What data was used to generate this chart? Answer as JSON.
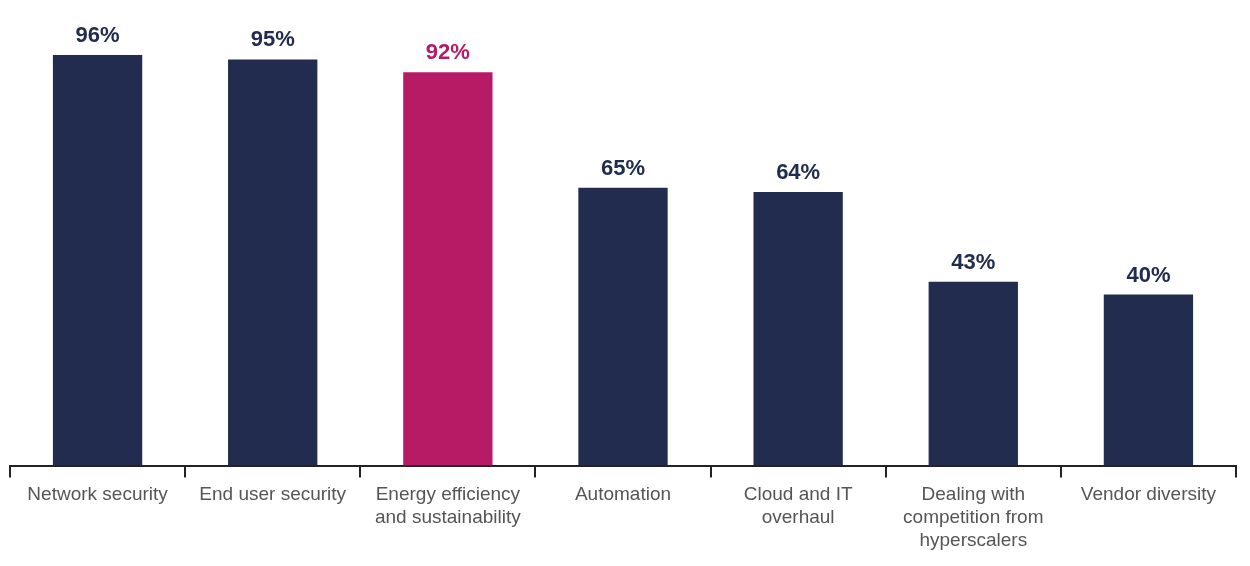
{
  "chart_data": {
    "type": "bar",
    "categories": [
      "Network security",
      "End user security",
      "Energy efficiency and sustainability",
      "Automation",
      "Cloud and IT overhaul",
      "Dealing with competition from hyperscalers",
      "Vendor diversity"
    ],
    "values": [
      96,
      95,
      92,
      65,
      64,
      43,
      40
    ],
    "colors": [
      "#212c4f",
      "#212c4f",
      "#b81b66",
      "#212c4f",
      "#212c4f",
      "#212c4f",
      "#212c4f"
    ],
    "value_labels": [
      "96%",
      "95%",
      "92%",
      "65%",
      "64%",
      "43%",
      "40%"
    ],
    "grid": false,
    "legend": false
  }
}
